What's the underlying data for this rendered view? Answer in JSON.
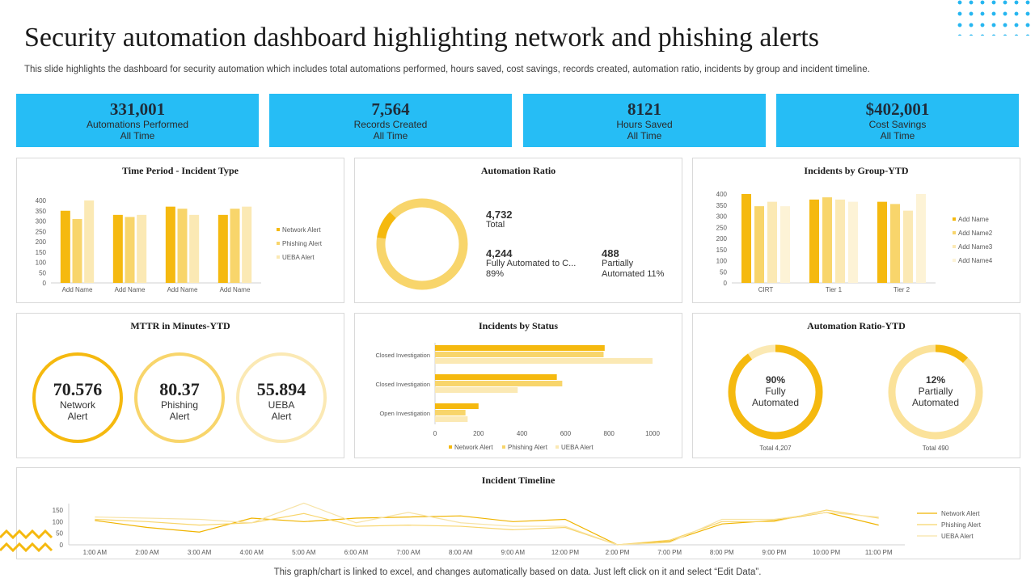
{
  "header": {
    "title": "Security automation dashboard highlighting network and phishing alerts",
    "subtitle": "This slide highlights the dashboard for security automation which includes total automations performed, hours saved, cost savings, records created, automation ratio, incidents by group and incident timeline."
  },
  "colors": {
    "accent": "#26bdf5",
    "network": "#f5b90f",
    "phishing": "#f8d56b",
    "ueba": "#fbe9b4"
  },
  "kpis": [
    {
      "value": "331,001",
      "label": "Automations Performed",
      "sub": "All Time"
    },
    {
      "value": "7,564",
      "label": "Records Created",
      "sub": "All Time"
    },
    {
      "value": "8121",
      "label": "Hours Saved",
      "sub": "All Time"
    },
    {
      "value": "$402,001",
      "label": "Cost Savings",
      "sub": "All Time"
    }
  ],
  "panels": {
    "time_period": {
      "title": "Time Period - Incident Type"
    },
    "automation_ratio": {
      "title": "Automation Ratio",
      "total_value": "4,732",
      "total_label": "Total",
      "fully_value": "4,244",
      "fully_label": "Fully Automated to C...",
      "fully_pct": "89%",
      "partial_value": "488",
      "partial_label": "Partially",
      "partial_pct": "Automated 11%"
    },
    "incidents_group": {
      "title": "Incidents by Group-YTD"
    },
    "mttr": {
      "title": "MTTR in Minutes-YTD",
      "items": [
        {
          "value": "70.576",
          "line1": "Network",
          "line2": "Alert"
        },
        {
          "value": "80.37",
          "line1": "Phishing",
          "line2": "Alert"
        },
        {
          "value": "55.894",
          "line1": "UEBA",
          "line2": "Alert"
        }
      ]
    },
    "incidents_status": {
      "title": "Incidents by Status"
    },
    "ratio_ytd": {
      "title": "Automation Ratio-YTD",
      "items": [
        {
          "pct": "90%",
          "line1": "Fully",
          "line2": "Automated",
          "total": "Total 4,207",
          "fraction": 0.9
        },
        {
          "pct": "12%",
          "line1": "Partially",
          "line2": "Automated",
          "total": "Total 490",
          "fraction": 0.12
        }
      ]
    },
    "timeline": {
      "title": "Incident Timeline"
    }
  },
  "footer": {
    "note": "This graph/chart is linked to excel,  and changes automatically based on data. Just left click on it and select “Edit Data”."
  },
  "chart_data": [
    {
      "id": "time_period",
      "type": "bar",
      "title": "Time Period - Incident Type",
      "categories": [
        "Add Name",
        "Add Name",
        "Add Name",
        "Add Name"
      ],
      "series": [
        {
          "name": "Network Alert",
          "values": [
            350,
            330,
            370,
            330
          ]
        },
        {
          "name": "Phishing Alert",
          "values": [
            310,
            320,
            360,
            360
          ]
        },
        {
          "name": "UEBA Alert",
          "values": [
            400,
            330,
            330,
            370
          ]
        }
      ],
      "ylim": [
        0,
        400
      ],
      "yticks": [
        0,
        50,
        100,
        150,
        200,
        250,
        300,
        350,
        400
      ],
      "legend": "right"
    },
    {
      "id": "automation_ratio",
      "type": "pie",
      "title": "Automation Ratio",
      "slices": [
        {
          "label": "Fully Automated",
          "value": 4244
        },
        {
          "label": "Partially Automated",
          "value": 488
        }
      ]
    },
    {
      "id": "incidents_group",
      "type": "bar",
      "title": "Incidents by Group-YTD",
      "categories": [
        "CIRT",
        "Tier 1",
        "Tier 2"
      ],
      "series": [
        {
          "name": "Add Name",
          "values": [
            400,
            375,
            365
          ]
        },
        {
          "name": "Add Name2",
          "values": [
            345,
            385,
            355
          ]
        },
        {
          "name": "Add Name3",
          "values": [
            365,
            375,
            325
          ]
        },
        {
          "name": "Add Name4",
          "values": [
            345,
            365,
            400
          ]
        }
      ],
      "ylim": [
        0,
        400
      ],
      "yticks": [
        0,
        50,
        100,
        150,
        200,
        250,
        300,
        350,
        400
      ],
      "legend": "right"
    },
    {
      "id": "incidents_status",
      "type": "bar",
      "title": "Incidents by Status",
      "orientation": "horizontal",
      "categories": [
        "Closed Investigation",
        "Closed Investigation",
        "Open Investigation"
      ],
      "series": [
        {
          "name": "Network Alert",
          "values": [
            780,
            560,
            200
          ]
        },
        {
          "name": "Phishing Alert",
          "values": [
            775,
            585,
            140
          ]
        },
        {
          "name": "UEBA Alert",
          "values": [
            1000,
            380,
            150
          ]
        }
      ],
      "xlim": [
        0,
        1000
      ],
      "xticks": [
        0,
        200,
        400,
        600,
        800,
        1000
      ],
      "legend": "bottom"
    },
    {
      "id": "timeline",
      "type": "line",
      "title": "Incident Timeline",
      "x": [
        "1:00 AM",
        "2:00 AM",
        "3:00 AM",
        "4:00 AM",
        "5:00 AM",
        "6:00 AM",
        "7:00 AM",
        "8:00 AM",
        "9:00 AM",
        "12:00 PM",
        "2:00 PM",
        "7:00 PM",
        "8:00 PM",
        "9:00 PM",
        "10:00 PM",
        "11:00 PM"
      ],
      "series": [
        {
          "name": "Network Alert",
          "values": [
            105,
            75,
            55,
            115,
            100,
            115,
            120,
            125,
            100,
            110,
            0,
            15,
            90,
            105,
            140,
            85
          ]
        },
        {
          "name": "Phishing Alert",
          "values": [
            110,
            100,
            85,
            95,
            135,
            80,
            85,
            80,
            65,
            75,
            0,
            20,
            100,
            100,
            150,
            115
          ]
        },
        {
          "name": "UEBA Alert",
          "values": [
            120,
            115,
            110,
            95,
            180,
            95,
            140,
            95,
            80,
            80,
            0,
            10,
            110,
            110,
            140,
            120
          ]
        }
      ],
      "ylim": [
        0,
        150
      ],
      "yticks": [
        0,
        50,
        100,
        150
      ],
      "legend": "right"
    }
  ]
}
